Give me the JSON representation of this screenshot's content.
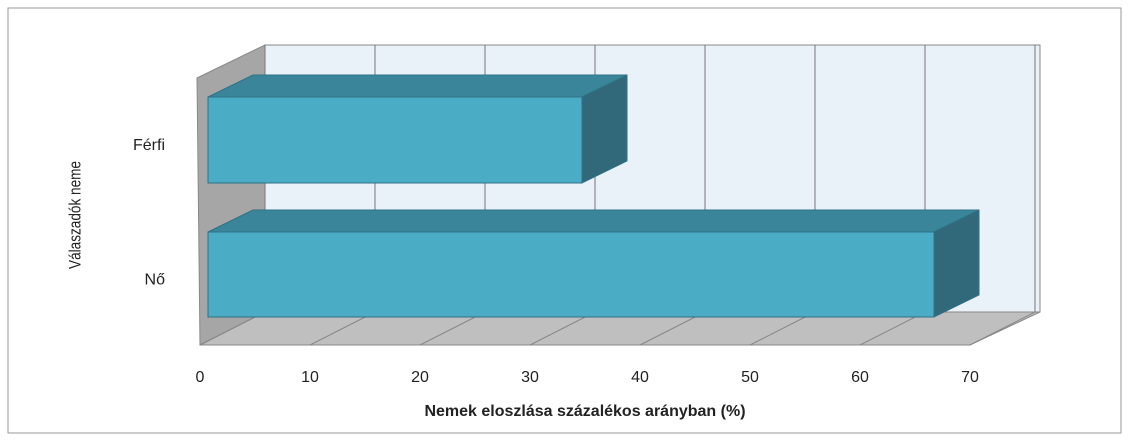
{
  "chart_data": {
    "type": "bar3d_horizontal",
    "categories": [
      "Férfi",
      "Nő"
    ],
    "values": [
      34,
      66
    ],
    "color": "#4bacc6",
    "xlim": [
      0,
      70
    ],
    "xticks": [
      0,
      10,
      20,
      30,
      40,
      50,
      60,
      70
    ],
    "x_label": "Nemek eloszlása százalékos arányban (%)",
    "y_label": "Válaszadók neme",
    "grid": true
  }
}
